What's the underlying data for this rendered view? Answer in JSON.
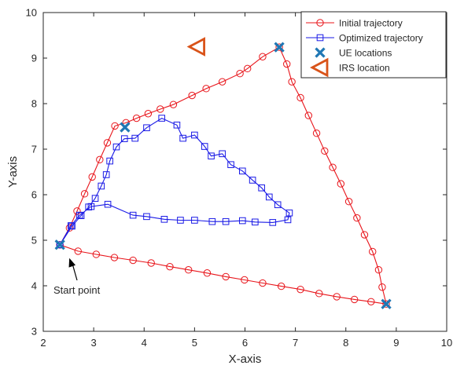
{
  "chart_data": {
    "type": "line",
    "title": "",
    "xlabel": "X-axis",
    "ylabel": "Y-axis",
    "xlim": [
      2,
      10
    ],
    "ylim": [
      3,
      10
    ],
    "xticks": [
      "2",
      "3",
      "4",
      "5",
      "6",
      "7",
      "8",
      "9",
      "10"
    ],
    "yticks": [
      "3",
      "4",
      "5",
      "6",
      "7",
      "8",
      "9",
      "10"
    ],
    "grid": false,
    "legend_position": "top-right",
    "annotation": {
      "text": "Start point",
      "target": [
        2.33,
        4.9
      ]
    },
    "series": [
      {
        "name": "Initial trajectory",
        "color": "#e8141a",
        "marker": "circle",
        "points": [
          [
            2.33,
            4.9
          ],
          [
            2.52,
            5.27
          ],
          [
            2.67,
            5.64
          ],
          [
            2.82,
            6.02
          ],
          [
            2.97,
            6.39
          ],
          [
            3.12,
            6.77
          ],
          [
            3.27,
            7.14
          ],
          [
            3.42,
            7.51
          ],
          [
            3.64,
            7.58
          ],
          [
            3.85,
            7.68
          ],
          [
            4.08,
            7.78
          ],
          [
            4.32,
            7.88
          ],
          [
            4.58,
            7.98
          ],
          [
            4.95,
            8.18
          ],
          [
            5.23,
            8.33
          ],
          [
            5.55,
            8.48
          ],
          [
            5.9,
            8.66
          ],
          [
            6.05,
            8.77
          ],
          [
            6.35,
            9.03
          ],
          [
            6.68,
            9.24
          ],
          [
            6.83,
            8.87
          ],
          [
            6.93,
            8.48
          ],
          [
            7.1,
            8.13
          ],
          [
            7.26,
            7.74
          ],
          [
            7.42,
            7.35
          ],
          [
            7.58,
            6.96
          ],
          [
            7.74,
            6.6
          ],
          [
            7.9,
            6.24
          ],
          [
            8.06,
            5.85
          ],
          [
            8.22,
            5.49
          ],
          [
            8.37,
            5.12
          ],
          [
            8.53,
            4.75
          ],
          [
            8.65,
            4.35
          ],
          [
            8.72,
            3.97
          ],
          [
            8.8,
            3.6
          ],
          [
            8.5,
            3.65
          ],
          [
            8.17,
            3.7
          ],
          [
            7.82,
            3.76
          ],
          [
            7.47,
            3.83
          ],
          [
            7.1,
            3.92
          ],
          [
            6.72,
            3.99
          ],
          [
            6.35,
            4.06
          ],
          [
            5.99,
            4.13
          ],
          [
            5.62,
            4.2
          ],
          [
            5.25,
            4.28
          ],
          [
            4.88,
            4.35
          ],
          [
            4.51,
            4.42
          ],
          [
            4.14,
            4.5
          ],
          [
            3.78,
            4.56
          ],
          [
            3.41,
            4.62
          ],
          [
            3.05,
            4.69
          ],
          [
            2.69,
            4.76
          ],
          [
            2.33,
            4.9
          ]
        ]
      },
      {
        "name": "Optimized trajectory",
        "color": "#1a1ae6",
        "marker": "square",
        "points": [
          [
            2.33,
            4.9
          ],
          [
            2.57,
            5.31
          ],
          [
            2.75,
            5.54
          ],
          [
            2.9,
            5.73
          ],
          [
            3.03,
            5.92
          ],
          [
            3.15,
            6.19
          ],
          [
            3.25,
            6.44
          ],
          [
            3.32,
            6.74
          ],
          [
            3.45,
            7.05
          ],
          [
            3.61,
            7.23
          ],
          [
            3.82,
            7.24
          ],
          [
            4.05,
            7.47
          ],
          [
            4.35,
            7.68
          ],
          [
            4.65,
            7.53
          ],
          [
            4.77,
            7.24
          ],
          [
            5.0,
            7.31
          ],
          [
            5.2,
            7.06
          ],
          [
            5.33,
            6.85
          ],
          [
            5.55,
            6.9
          ],
          [
            5.72,
            6.66
          ],
          [
            5.95,
            6.52
          ],
          [
            6.15,
            6.32
          ],
          [
            6.33,
            6.15
          ],
          [
            6.48,
            5.95
          ],
          [
            6.65,
            5.78
          ],
          [
            6.88,
            5.6
          ],
          [
            6.85,
            5.45
          ],
          [
            6.55,
            5.39
          ],
          [
            6.2,
            5.4
          ],
          [
            5.95,
            5.43
          ],
          [
            5.62,
            5.41
          ],
          [
            5.35,
            5.41
          ],
          [
            5.0,
            5.44
          ],
          [
            4.72,
            5.44
          ],
          [
            4.4,
            5.46
          ],
          [
            4.05,
            5.52
          ],
          [
            3.78,
            5.55
          ],
          [
            3.28,
            5.79
          ],
          [
            2.95,
            5.74
          ],
          [
            2.72,
            5.55
          ],
          [
            2.55,
            5.32
          ],
          [
            2.33,
            4.9
          ]
        ]
      }
    ],
    "ue_locations": {
      "name": "UE locations",
      "color": "#1f77b4",
      "marker": "x",
      "points": [
        [
          2.33,
          4.9
        ],
        [
          3.62,
          7.48
        ],
        [
          6.68,
          9.24
        ],
        [
          8.8,
          3.6
        ]
      ]
    },
    "irs_location": {
      "name": "IRS location",
      "color": "#d95319",
      "marker": "triangle-left",
      "points": [
        [
          5.05,
          9.25
        ]
      ]
    }
  }
}
